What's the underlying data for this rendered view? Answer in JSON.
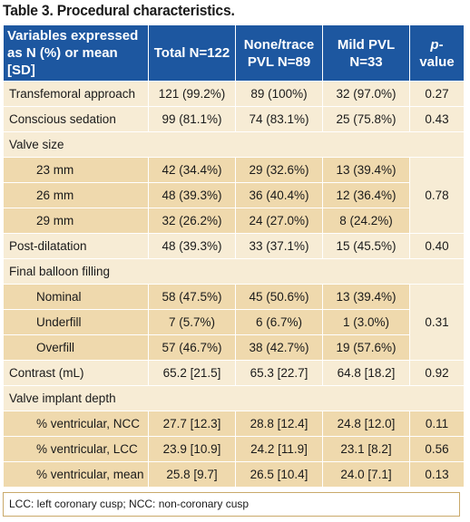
{
  "title": "Table 3. Procedural characteristics.",
  "header": {
    "col0": "Variables expressed as N (%) or mean [SD]",
    "col1": "Total N=122",
    "col2": "None/trace PVL N=89",
    "col3": "Mild PVL N=33",
    "col4_italic": "p",
    "col4_rest": "-value"
  },
  "rows": {
    "transfemoral": {
      "label": "Transfemoral approach",
      "total": "121 (99.2%)",
      "none": "89 (100%)",
      "mild": "32 (97.0%)",
      "p": "0.27"
    },
    "sedation": {
      "label": "Conscious sedation",
      "total": "99 (81.1%)",
      "none": "74 (83.1%)",
      "mild": "25 (75.8%)",
      "p": "0.43"
    },
    "valve_size": {
      "label": "Valve size"
    },
    "mm23": {
      "label": "23 mm",
      "total": "42 (34.4%)",
      "none": "29 (32.6%)",
      "mild": "13 (39.4%)"
    },
    "mm26": {
      "label": "26 mm",
      "total": "48 (39.3%)",
      "none": "36 (40.4%)",
      "mild": "12 (36.4%)"
    },
    "mm29": {
      "label": "29 mm",
      "total": "32 (26.2%)",
      "none": "24 (27.0%)",
      "mild": "8 (24.2%)"
    },
    "valve_size_p": "0.78",
    "postdil": {
      "label": "Post-dilatation",
      "total": "48 (39.3%)",
      "none": "33 (37.1%)",
      "mild": "15 (45.5%)",
      "p": "0.40"
    },
    "balloon": {
      "label": "Final balloon filling"
    },
    "nominal": {
      "label": "Nominal",
      "total": "58 (47.5%)",
      "none": "45 (50.6%)",
      "mild": "13 (39.4%)"
    },
    "underfill": {
      "label": "Underfill",
      "total": "7 (5.7%)",
      "none": "6 (6.7%)",
      "mild": "1 (3.0%)"
    },
    "overfill": {
      "label": "Overfill",
      "total": "57 (46.7%)",
      "none": "38 (42.7%)",
      "mild": "19 (57.6%)"
    },
    "balloon_p": "0.31",
    "contrast": {
      "label": "Contrast (mL)",
      "total": "65.2 [21.5]",
      "none": "65.3 [22.7]",
      "mild": "64.8 [18.2]",
      "p": "0.92"
    },
    "depth": {
      "label": "Valve implant depth"
    },
    "ncc": {
      "label": "% ventricular, NCC",
      "total": "27.7 [12.3]",
      "none": "28.8 [12.4]",
      "mild": "24.8 [12.0]",
      "p": "0.11"
    },
    "lcc": {
      "label": "% ventricular, LCC",
      "total": "23.9 [10.9]",
      "none": "24.2 [11.9]",
      "mild": "23.1 [8.2]",
      "p": "0.56"
    },
    "mean": {
      "label": "% ventricular, mean",
      "total": "25.8 [9.7]",
      "none": "26.5 [10.4]",
      "mild": "24.0 [7.1]",
      "p": "0.13"
    }
  },
  "footer": "LCC: left coronary cusp; NCC: non-coronary cusp"
}
